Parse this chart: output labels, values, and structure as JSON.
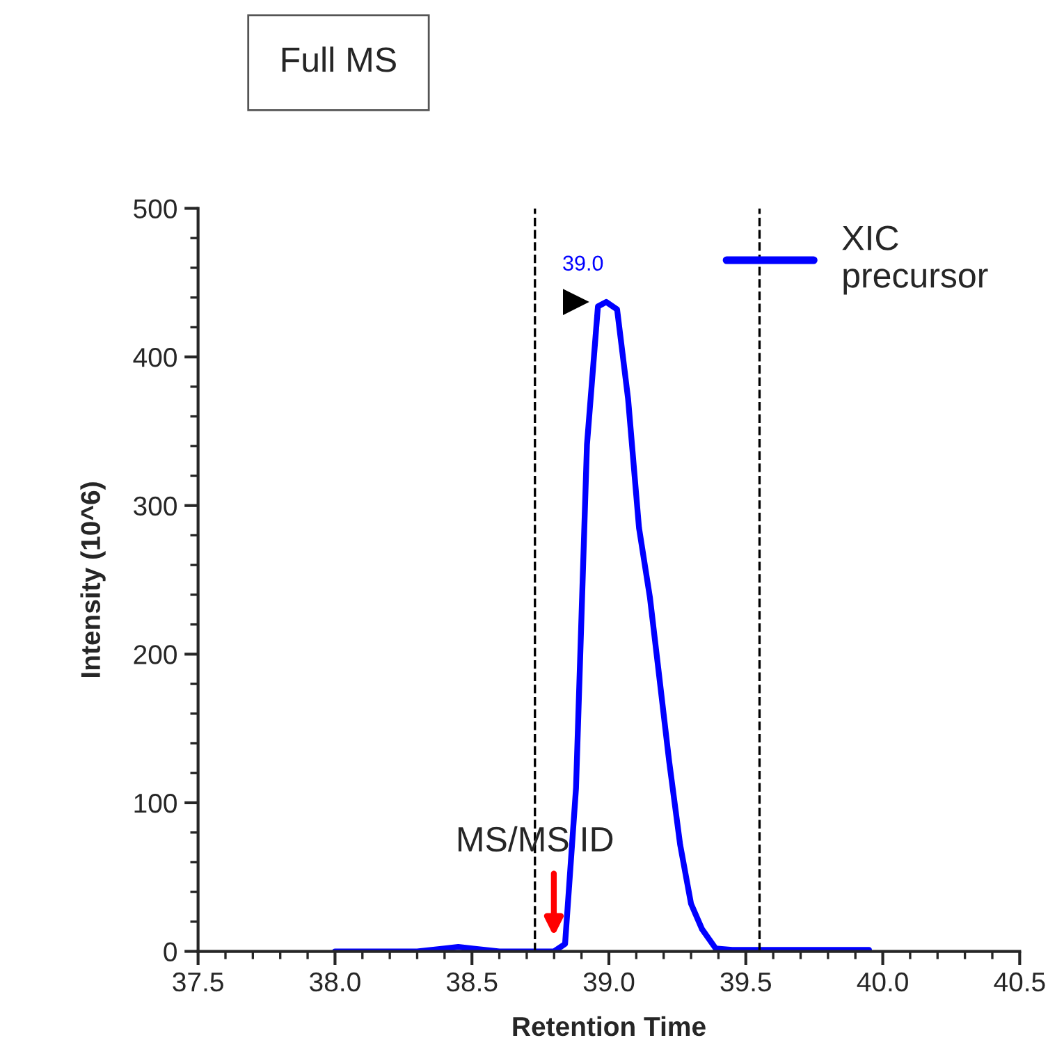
{
  "chart_data": {
    "type": "line",
    "title": "Full MS",
    "xlabel": "Retention Time",
    "ylabel": "Intensity (10^6)",
    "xlim": [
      37.5,
      40.5
    ],
    "xticks": [
      {
        "value": 37.5,
        "label": "37.5"
      },
      {
        "value": 38.0,
        "label": "38.0"
      },
      {
        "value": 38.5,
        "label": "38.5"
      },
      {
        "value": 39.0,
        "label": "39.0"
      },
      {
        "value": 39.5,
        "label": "39.5"
      },
      {
        "value": 40.0,
        "label": "40.0"
      },
      {
        "value": 40.5,
        "label": "40.5"
      }
    ],
    "ylim": [
      0,
      500
    ],
    "yticks": [
      0,
      100,
      200,
      300,
      400,
      500
    ],
    "grid": false,
    "legend": "top right",
    "series": [
      {
        "name": "XIC precursor",
        "color": "#0000ff",
        "x": [
          38.0,
          38.3,
          38.4,
          38.45,
          38.5,
          38.6,
          38.8,
          38.84,
          38.88,
          38.92,
          38.96,
          38.99,
          39.03,
          39.07,
          39.11,
          39.15,
          39.18,
          39.22,
          39.26,
          39.3,
          39.34,
          39.39,
          39.45,
          39.95
        ],
        "values": [
          0,
          0,
          2,
          3,
          2,
          0,
          0,
          5,
          110,
          341,
          434,
          437,
          432,
          372,
          285,
          238,
          191,
          128,
          72,
          32,
          15,
          2,
          1,
          1
        ]
      }
    ],
    "ref_lines": [
      {
        "axis": "x",
        "value": 38.73,
        "color": "#000000",
        "line_style": "dashed"
      },
      {
        "axis": "x",
        "value": 39.55,
        "color": "#000000",
        "line_style": "dashed"
      }
    ],
    "annotations": [
      {
        "text": "39.0",
        "x": 38.99,
        "y": 437
      },
      "MS/MS ID"
    ]
  }
}
